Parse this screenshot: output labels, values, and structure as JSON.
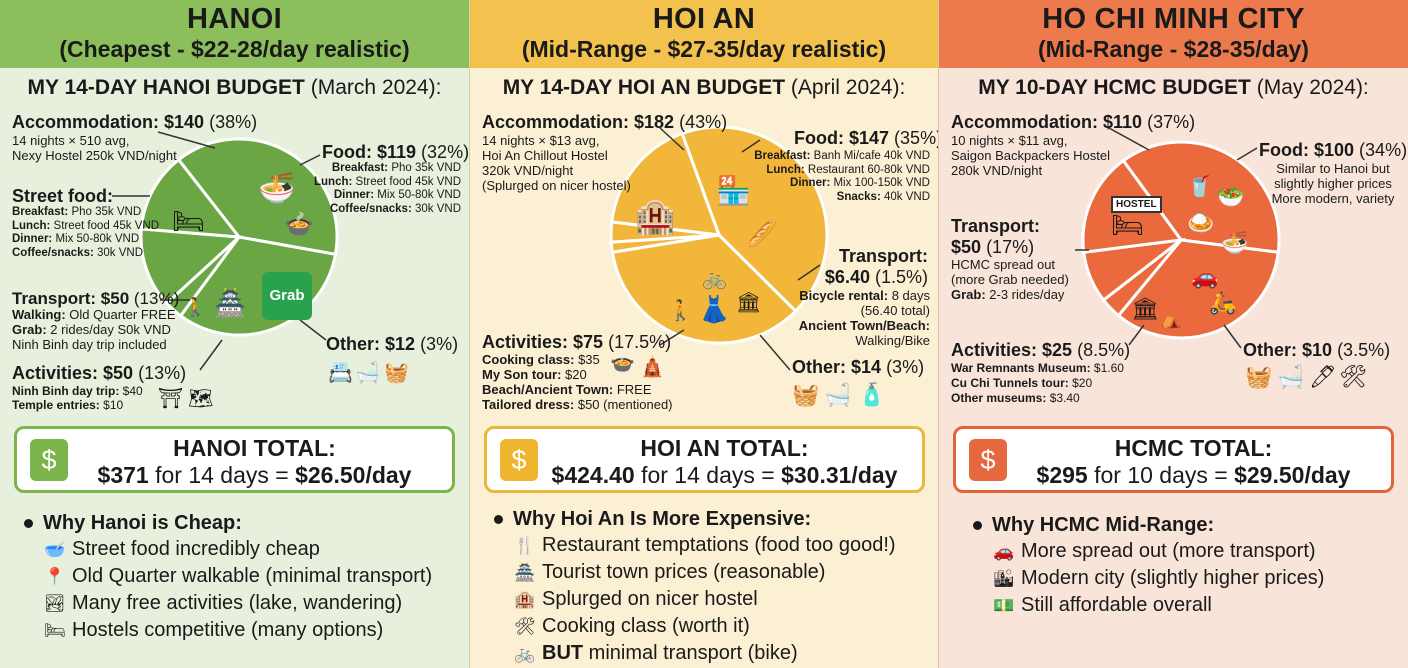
{
  "hanoi": {
    "city": "HANOI",
    "subtitle": "(Cheapest - $22-28/day realistic)",
    "budget_bold": "MY 14-DAY HANOI BUDGET",
    "budget_rest": " (March 2024):",
    "accommodation": {
      "label": "Accommodation: $140",
      "pct": "(38%)",
      "l1": "14 nights × 510 avg,",
      "l2": "Nexy Hostel 250k VND/night"
    },
    "food": {
      "label": "Food: $119",
      "pct": "(32%)",
      "b": "Breakfast:",
      "bv": " Pho 35k VND",
      "l": "Lunch:",
      "lv": " Street food 45k VND",
      "d": "Dinner:",
      "dv": " Mix 50-80k VND",
      "c": "Coffee/snacks:",
      "cv": " 30k VND"
    },
    "street": {
      "label": "Street food:",
      "b": "Breakfast:",
      "bv": " Pho 35k VND",
      "l": "Lunch:",
      "lv": " Street food 45k VND",
      "d": "Dinner:",
      "dv": " Mix 50-80k VND",
      "c": "Coffee/snacks:",
      "cv": " 30k VND"
    },
    "transport": {
      "label": "Transport: $50",
      "pct": "(13%)",
      "w": "Walking:",
      "wv": " Old Quarter FREE",
      "g": "Grab:",
      "gv": " 2 rides/day S0k VND",
      "n": "Ninh Binh day trip included"
    },
    "other": {
      "label": "Other: $12",
      "pct": "(3%)"
    },
    "activities": {
      "label": "Activities: $50",
      "pct": "(13%)",
      "n": "Ninh Binh day trip:",
      "nv": " $40",
      "t": "Temple entries:",
      "tv": " $10"
    },
    "grab_logo": "Grab",
    "total_title": "HANOI TOTAL:",
    "total_amount": "$371",
    "total_mid": " for 14 days = ",
    "total_day": "$26.50/day",
    "why_title": "Why Hanoi is Cheap:",
    "why": [
      "Street food incredibly cheap",
      "Old Quarter walkable (minimal transport)",
      "Many free activities (lake, wandering)",
      "Hostels competitive (many options)"
    ],
    "why_icons": [
      "bowl-icon",
      "map-pin-icon",
      "lake-icon",
      "bed-icon"
    ]
  },
  "hoian": {
    "city": "HOI AN",
    "subtitle": "(Mid-Range - $27-35/day realistic)",
    "budget_bold": "MY 14-DAY HOI AN BUDGET",
    "budget_rest": " (April 2024):",
    "accommodation": {
      "label": "Accommodation: $182",
      "pct": "(43%)",
      "l1": "14 nights × $13 avg,",
      "l2": "Hoi An Chillout Hostel",
      "l3": "320k VND/night",
      "l4": "(Splurged on nicer hostel)"
    },
    "food": {
      "label": "Food: $147",
      "pct": "(35%)",
      "b": "Breakfast:",
      "bv": " Banh Mi/cafe 40k VND",
      "l": "Lunch:",
      "lv": " Restaurant 60-80k VND",
      "d": "Dinner:",
      "dv": " Mix 100-150k VND",
      "s": "Snacks:",
      "sv": " 40k VND"
    },
    "transport": {
      "label": "Transport:",
      "amount": "$6.40",
      "pct": "(1.5%)",
      "b": "Bicycle rental:",
      "bv": " 8 days",
      "bt": "(56.40 total)",
      "a": "Ancient Town/Beach:",
      "av": "Walking/Bike"
    },
    "activities": {
      "label": "Activities: $75",
      "pct": "(17.5%)",
      "c": "Cooking class:",
      "cv": " $35",
      "m": "My Son tour:",
      "mv": " $20",
      "b": "Beach/Ancient Town:",
      "bv": " FREE",
      "t": "Tailored dress:",
      "tv": " $50 (mentioned)"
    },
    "other": {
      "label": "Other: $14",
      "pct": "(3%)"
    },
    "total_title": "HOI AN TOTAL:",
    "total_amount": "$424.40",
    "total_mid": " for 14 days = ",
    "total_day": "$30.31/day",
    "why_title": "Why Hoi An Is More Expensive:",
    "why": [
      "Restaurant temptations (food too good!)",
      "Tourist town prices (reasonable)",
      "Splurged on nicer hostel",
      "Cooking class (worth it)",
      " minimal transport (bike)"
    ],
    "why_last_bold": "BUT",
    "why_icons": [
      "utensils-icon",
      "temple-icon",
      "hostel-icon",
      "tools-icon",
      "bicycle-icon"
    ]
  },
  "hcmc": {
    "city": "HO CHI MINH CITY",
    "subtitle": "(Mid-Range - $28-35/day)",
    "budget_bold": "MY 10-DAY HCMC BUDGET",
    "budget_rest": " (May 2024):",
    "accommodation": {
      "label": "Accommodation: $110",
      "pct": "(37%)",
      "l1": "10 nights × $11 avg,",
      "l2": "Saigon Backpackers Hostel",
      "l3": "280k VND/night"
    },
    "food": {
      "label": "Food: $100",
      "pct": "(34%)",
      "l1": "Similar to Hanoi but",
      "l2": "slightly higher prices",
      "l3": "More modern, variety"
    },
    "transport": {
      "label": "Transport:",
      "amount": "$50",
      "pct": "(17%)",
      "l1": "HCMC spread out",
      "l2": "(more Grab needed)",
      "g": "Grab:",
      "gv": " 2-3 rides/day"
    },
    "activities": {
      "label": "Activities: $25",
      "pct": "(8.5%)",
      "w": "War Remnants Museum:",
      "wv": " $1.60",
      "c": "Cu Chi Tunnels tour:",
      "cv": " $20",
      "o": "Other museums:",
      "ov": " $3.40"
    },
    "other": {
      "label": "Other: $10",
      "pct": "(3.5%)"
    },
    "hostel_sign": "HOSTEL",
    "total_title": "HCMC TOTAL:",
    "total_amount": "$295",
    "total_mid": " for 10 days = ",
    "total_day": "$29.50/day",
    "why_title": "Why HCMC Mid-Range:",
    "why": [
      "More spread out (more transport)",
      "Modern city (slightly higher prices)",
      "Still affordable overall"
    ],
    "why_icons": [
      "car-icon",
      "city-icon",
      "money-icon"
    ]
  },
  "colors": {
    "hanoi_pie": "#6ba644",
    "hoian_pie": "#f2b73a",
    "hcmc_pie": "#ea6a3e"
  },
  "chart_data": [
    {
      "type": "pie",
      "title": "MY 14-DAY HANOI BUDGET (March 2024):",
      "categories": [
        "Accommodation",
        "Food",
        "Other",
        "Activities",
        "Transport"
      ],
      "values": [
        38,
        32,
        3,
        13,
        13
      ]
    },
    {
      "type": "pie",
      "title": "MY 14-DAY HOI AN BUDGET (April 2024):",
      "categories": [
        "Accommodation",
        "Food",
        "Transport",
        "Other",
        "Activities"
      ],
      "values": [
        43,
        35,
        1.5,
        3,
        17.5
      ]
    },
    {
      "type": "pie",
      "title": "MY 10-DAY HCMC BUDGET (May 2024):",
      "categories": [
        "Accommodation",
        "Food",
        "Other",
        "Activities",
        "Transport"
      ],
      "values": [
        37,
        34,
        3.5,
        8.5,
        17
      ]
    }
  ]
}
